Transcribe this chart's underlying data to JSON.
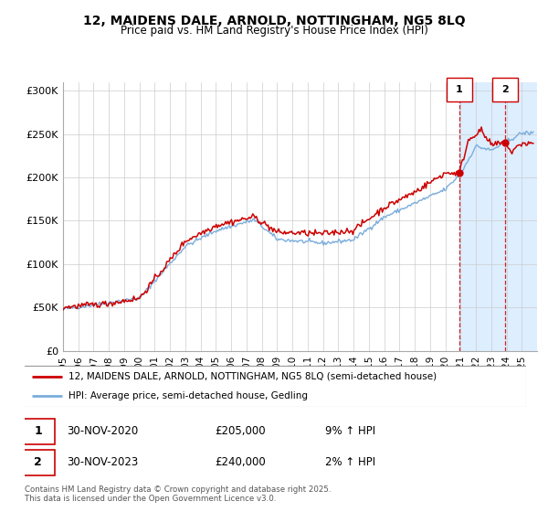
{
  "title": "12, MAIDENS DALE, ARNOLD, NOTTINGHAM, NG5 8LQ",
  "subtitle": "Price paid vs. HM Land Registry's House Price Index (HPI)",
  "legend_line1": "12, MAIDENS DALE, ARNOLD, NOTTINGHAM, NG5 8LQ (semi-detached house)",
  "legend_line2": "HPI: Average price, semi-detached house, Gedling",
  "red_color": "#cc0000",
  "blue_color": "#7aaddc",
  "shaded_color": "#ddeeff",
  "marker1_year": 2020.92,
  "marker2_year": 2023.92,
  "marker1_value": 205000,
  "marker2_value": 240000,
  "annotation1": [
    "1",
    "30-NOV-2020",
    "£205,000",
    "9% ↑ HPI"
  ],
  "annotation2": [
    "2",
    "30-NOV-2023",
    "£240,000",
    "2% ↑ HPI"
  ],
  "ylabel_ticks": [
    0,
    50000,
    100000,
    150000,
    200000,
    250000,
    300000
  ],
  "ylabel_labels": [
    "£0",
    "£50K",
    "£100K",
    "£150K",
    "£200K",
    "£250K",
    "£300K"
  ],
  "xmin": 1995,
  "xmax": 2026,
  "ymin": 0,
  "ymax": 310000,
  "footer": "Contains HM Land Registry data © Crown copyright and database right 2025.\nThis data is licensed under the Open Government Licence v3.0."
}
